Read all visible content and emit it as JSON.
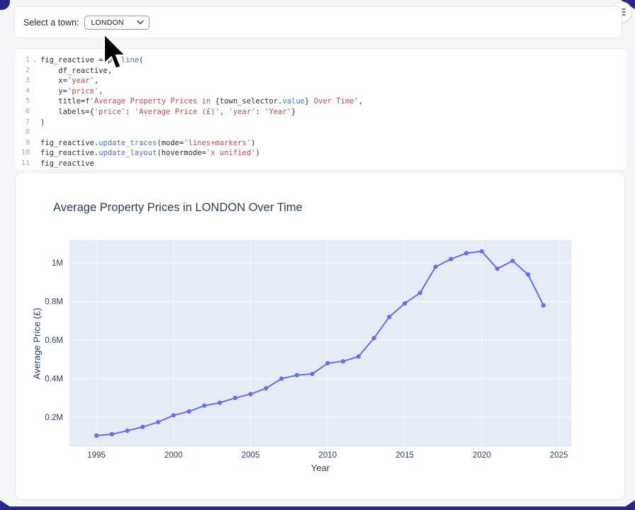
{
  "colors": {
    "accent": "#26268c",
    "line": "#636efa",
    "plot_bg": "#e5ecf6",
    "axis_text": "#2a3f5f",
    "code_string": "#b5504a",
    "code_function": "#4078c8"
  },
  "select_cell": {
    "label": "Select a town:",
    "value": "LONDON",
    "chevron_icon": "chevron-down-icon"
  },
  "menu_button": {
    "icon": "hamburger-icon"
  },
  "code_cell": {
    "lines": [
      {
        "n": "1",
        "fold": true,
        "tokens": [
          [
            "plain",
            "fig_reactive = px."
          ],
          [
            "fn",
            "line"
          ],
          [
            "plain",
            "("
          ]
        ]
      },
      {
        "n": "2",
        "tokens": [
          [
            "plain",
            "    df_reactive,"
          ]
        ]
      },
      {
        "n": "3",
        "tokens": [
          [
            "plain",
            "    x="
          ],
          [
            "str",
            "'year'"
          ],
          [
            "plain",
            ","
          ]
        ]
      },
      {
        "n": "4",
        "tokens": [
          [
            "plain",
            "    y="
          ],
          [
            "str",
            "'price'"
          ],
          [
            "plain",
            ","
          ]
        ]
      },
      {
        "n": "5",
        "tokens": [
          [
            "plain",
            "    title=f"
          ],
          [
            "str",
            "'Average Property Prices in "
          ],
          [
            "plain",
            "{town_selector."
          ],
          [
            "fn",
            "value"
          ],
          [
            "plain",
            "}"
          ],
          [
            "str",
            " Over Time'"
          ],
          [
            "plain",
            ","
          ]
        ]
      },
      {
        "n": "6",
        "tokens": [
          [
            "plain",
            "    labels={"
          ],
          [
            "str",
            "'price'"
          ],
          [
            "plain",
            ": "
          ],
          [
            "str",
            "'Average Price (£)'"
          ],
          [
            "plain",
            ", "
          ],
          [
            "str",
            "'year'"
          ],
          [
            "plain",
            ": "
          ],
          [
            "str",
            "'Year'"
          ],
          [
            "plain",
            "}"
          ]
        ]
      },
      {
        "n": "7",
        "tokens": [
          [
            "plain",
            ")"
          ]
        ]
      },
      {
        "n": "8",
        "tokens": []
      },
      {
        "n": "9",
        "tokens": [
          [
            "plain",
            "fig_reactive."
          ],
          [
            "fn",
            "update_traces"
          ],
          [
            "plain",
            "(mode="
          ],
          [
            "str",
            "'lines+markers'"
          ],
          [
            "plain",
            ")"
          ]
        ]
      },
      {
        "n": "10",
        "tokens": [
          [
            "plain",
            "fig_reactive."
          ],
          [
            "fn",
            "update_layout"
          ],
          [
            "plain",
            "(hovermode="
          ],
          [
            "str",
            "'x unified'"
          ],
          [
            "plain",
            ")"
          ]
        ]
      },
      {
        "n": "11",
        "tokens": [
          [
            "plain",
            "fig_reactive"
          ]
        ]
      }
    ]
  },
  "chart_data": {
    "type": "line",
    "title": "Average Property Prices in LONDON Over Time",
    "xlabel": "Year",
    "ylabel": "Average Price (£)",
    "series": [
      {
        "name": "price",
        "mode": "lines+markers",
        "x": [
          1995,
          1996,
          1997,
          1998,
          1999,
          2000,
          2001,
          2002,
          2003,
          2004,
          2005,
          2006,
          2007,
          2008,
          2009,
          2010,
          2011,
          2012,
          2013,
          2014,
          2015,
          2016,
          2017,
          2018,
          2019,
          2020,
          2021,
          2022,
          2023,
          2024
        ],
        "y": [
          105000,
          112000,
          130000,
          150000,
          175000,
          210000,
          230000,
          260000,
          275000,
          300000,
          320000,
          350000,
          400000,
          418000,
          425000,
          480000,
          490000,
          515000,
          610000,
          720000,
          790000,
          845000,
          980000,
          1020000,
          1050000,
          1060000,
          970000,
          1010000,
          940000,
          780000
        ]
      }
    ],
    "xticks": [
      1995,
      2000,
      2005,
      2010,
      2015,
      2020,
      2025
    ],
    "yticks": [
      200000,
      400000,
      600000,
      800000,
      1000000
    ],
    "ytick_labels": [
      "0.2M",
      "0.4M",
      "0.6M",
      "0.8M",
      "1M"
    ],
    "xlim": [
      1993.25,
      2025.8
    ],
    "ylim": [
      46000,
      1118000
    ],
    "grid": true,
    "legend": false
  }
}
